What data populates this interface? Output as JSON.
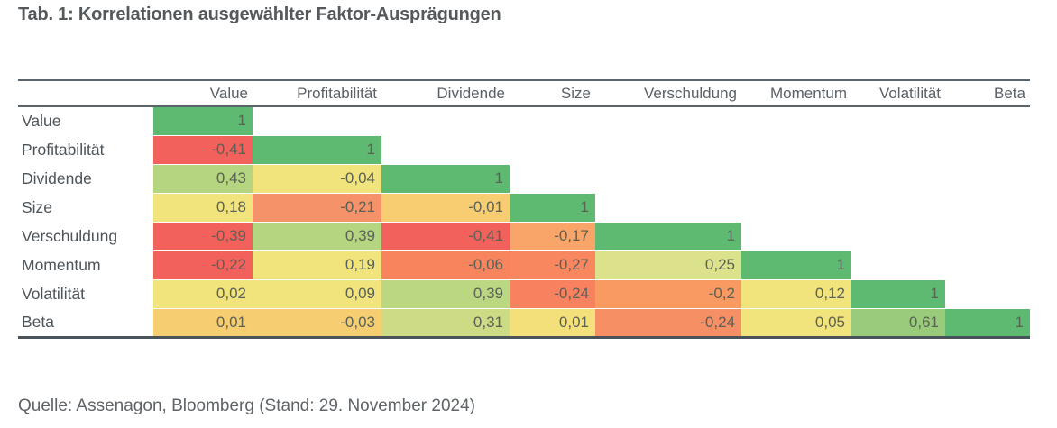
{
  "title": "Tab. 1: Korrelationen ausgewählter Faktor-Ausprägungen",
  "source": "Quelle: Assenagon, Bloomberg (Stand: 29. November 2024)",
  "chart_data": {
    "type": "heatmap",
    "title": "Tab. 1: Korrelationen ausgewählter Faktor-Ausprägungen",
    "columns": [
      "Value",
      "Profitabilität",
      "Dividende",
      "Size",
      "Verschuldung",
      "Momentum",
      "Volatilität",
      "Beta"
    ],
    "rows": [
      "Value",
      "Profitabilität",
      "Dividende",
      "Size",
      "Verschuldung",
      "Momentum",
      "Volatilität",
      "Beta"
    ],
    "matrix": [
      [
        1
      ],
      [
        -0.41,
        1
      ],
      [
        0.43,
        -0.04,
        1
      ],
      [
        0.18,
        -0.21,
        -0.01,
        1
      ],
      [
        -0.39,
        0.39,
        -0.41,
        -0.17,
        1
      ],
      [
        -0.22,
        0.19,
        -0.06,
        -0.27,
        0.25,
        1
      ],
      [
        0.02,
        0.09,
        0.39,
        -0.24,
        -0.2,
        0.12,
        1
      ],
      [
        0.01,
        -0.03,
        0.31,
        0.01,
        -0.24,
        0.05,
        0.61,
        1
      ]
    ],
    "display": [
      [
        "1"
      ],
      [
        "-0,41",
        "1"
      ],
      [
        "0,43",
        "-0,04",
        "1"
      ],
      [
        "0,18",
        "-0,21",
        "-0,01",
        "1"
      ],
      [
        "-0,39",
        "0,39",
        "-0,41",
        "-0,17",
        "1"
      ],
      [
        "-0,22",
        "0,19",
        "-0,06",
        "-0,27",
        "0,25",
        "1"
      ],
      [
        "0,02",
        "0,09",
        "0,39",
        "-0,24",
        "-0,2",
        "0,12",
        "1"
      ],
      [
        "0,01",
        "-0,03",
        "0,31",
        "0,01",
        "-0,24",
        "0,05",
        "0,61",
        "1"
      ]
    ],
    "cell_colors": [
      [
        "#5eb971"
      ],
      [
        "#f3615d",
        "#5eb971"
      ],
      [
        "#b6d580",
        "#f2e47d",
        "#5eb971"
      ],
      [
        "#f2e47d",
        "#f6926a",
        "#f8cd72",
        "#5eb971"
      ],
      [
        "#f3615d",
        "#b6d580",
        "#f3615d",
        "#f9a469",
        "#5eb971"
      ],
      [
        "#f3615d",
        "#f2e47d",
        "#f8845e",
        "#f8865f",
        "#dce28c",
        "#5eb971"
      ],
      [
        "#f2e47d",
        "#f2e47d",
        "#bcd781",
        "#f8815f",
        "#f99a63",
        "#f2e47d",
        "#5eb971"
      ],
      [
        "#f7cd72",
        "#f7cd72",
        "#cddc84",
        "#f3e07a",
        "#f78f64",
        "#f2e47d",
        "#9acb7b",
        "#5eb971"
      ]
    ],
    "color_scale": {
      "negative_strong": "#f3615d",
      "negative_mid": "#f8915f",
      "near_zero": "#f2e47d",
      "positive_mid": "#b6d580",
      "positive_strong": "#5eb971"
    },
    "legend": "none",
    "grid": "off"
  }
}
